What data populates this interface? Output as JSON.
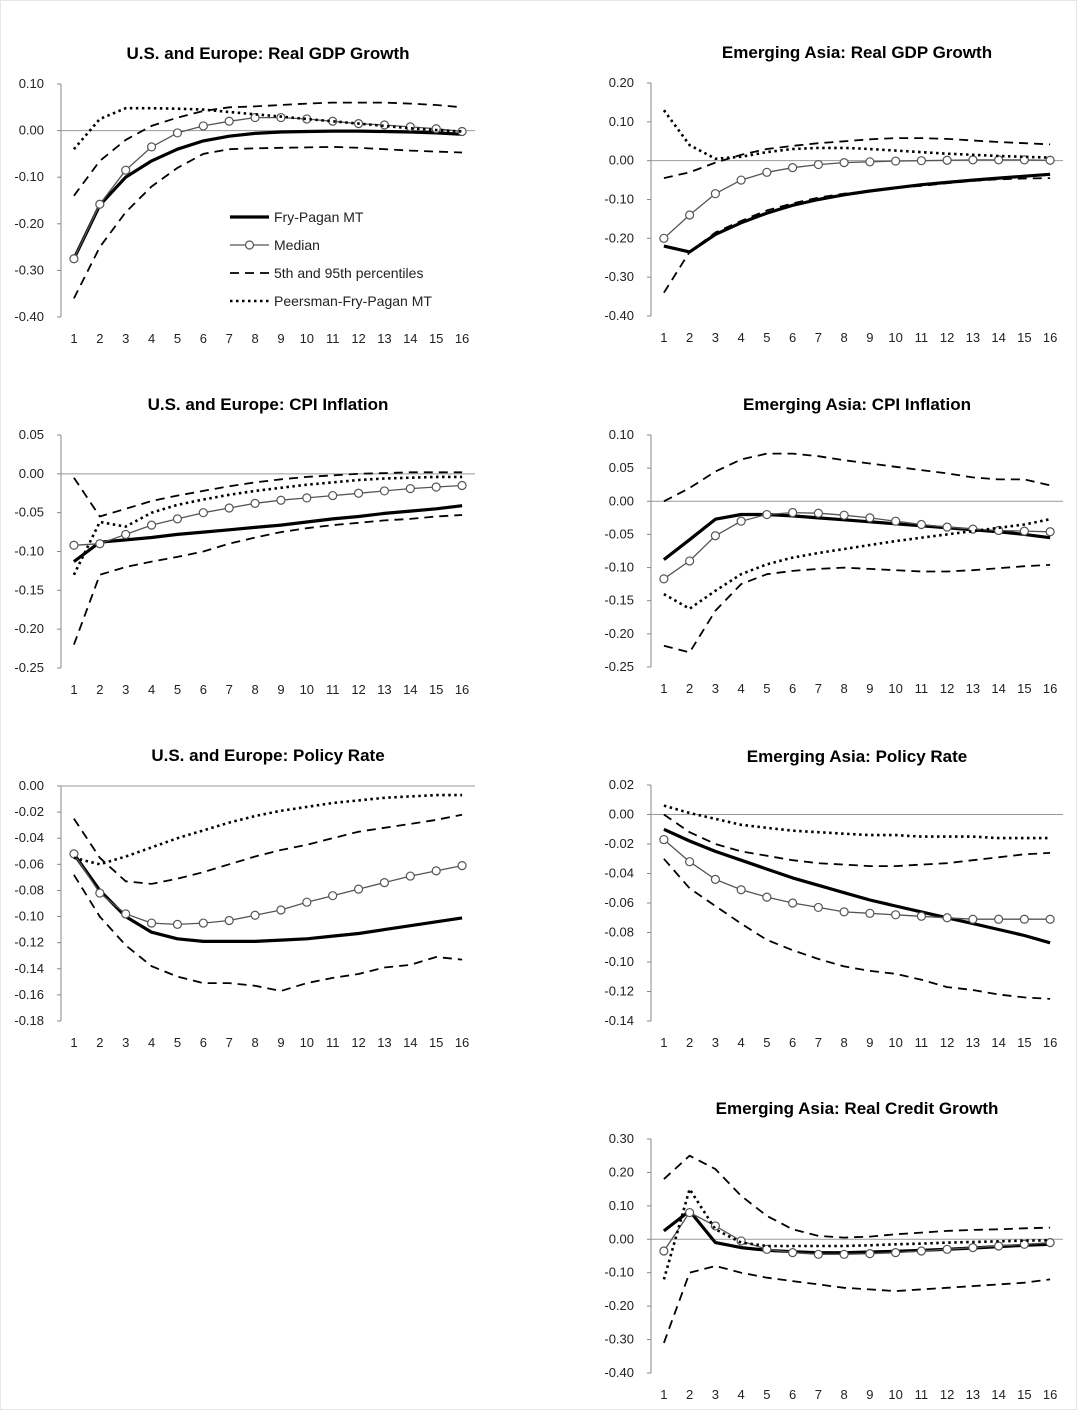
{
  "x_categories": [
    "1",
    "2",
    "3",
    "4",
    "5",
    "6",
    "7",
    "8",
    "9",
    "10",
    "11",
    "12",
    "13",
    "14",
    "15",
    "16"
  ],
  "legend": {
    "items": [
      {
        "key": "fry_pagan",
        "label": "Fry-Pagan MT"
      },
      {
        "key": "median",
        "label": "Median"
      },
      {
        "key": "pct",
        "label": "5th and 95th percentiles"
      },
      {
        "key": "peersman",
        "label": "Peersman-Fry-Pagan MT"
      }
    ]
  },
  "chart_data": [
    {
      "id": "us-gdp",
      "type": "line",
      "title": "U.S. and Europe: Real GDP Growth",
      "yticks": [
        "0.10",
        "0.00",
        "-0.10",
        "-0.20",
        "-0.30",
        "-0.40"
      ],
      "ylim": [
        -0.4,
        0.1
      ],
      "grid": false,
      "series": [
        {
          "key": "fry_pagan",
          "name": "Fry-Pagan MT",
          "values": [
            -0.275,
            -0.16,
            -0.1,
            -0.065,
            -0.04,
            -0.022,
            -0.012,
            -0.006,
            -0.003,
            -0.002,
            -0.001,
            -0.001,
            -0.002,
            -0.003,
            -0.005,
            -0.008
          ]
        },
        {
          "key": "median",
          "name": "Median",
          "values": [
            -0.275,
            -0.158,
            -0.085,
            -0.035,
            -0.005,
            0.01,
            0.02,
            0.028,
            0.028,
            0.025,
            0.02,
            0.015,
            0.012,
            0.008,
            0.004,
            -0.002
          ]
        },
        {
          "key": "p5",
          "name": "5th and 95th percentiles",
          "values": [
            -0.36,
            -0.25,
            -0.175,
            -0.12,
            -0.08,
            -0.05,
            -0.04,
            -0.038,
            -0.037,
            -0.036,
            -0.035,
            -0.037,
            -0.04,
            -0.043,
            -0.045,
            -0.047
          ]
        },
        {
          "key": "p95",
          "name": "5th and 95th percentiles",
          "values": [
            -0.14,
            -0.065,
            -0.02,
            0.01,
            0.028,
            0.042,
            0.05,
            0.052,
            0.055,
            0.058,
            0.06,
            0.06,
            0.06,
            0.058,
            0.055,
            0.05
          ]
        },
        {
          "key": "peersman",
          "name": "Peersman-Fry-Pagan MT",
          "values": [
            -0.04,
            0.025,
            0.048,
            0.048,
            0.047,
            0.045,
            0.04,
            0.035,
            0.03,
            0.025,
            0.02,
            0.015,
            0.01,
            0.005,
            0.001,
            -0.002
          ]
        }
      ]
    },
    {
      "id": "ea-gdp",
      "type": "line",
      "title": "Emerging Asia: Real GDP Growth",
      "yticks": [
        "0.20",
        "0.10",
        "0.00",
        "-0.10",
        "-0.20",
        "-0.30",
        "-0.40"
      ],
      "ylim": [
        -0.4,
        0.2
      ],
      "grid": false,
      "series": [
        {
          "key": "fry_pagan",
          "name": "Fry-Pagan MT",
          "values": [
            -0.22,
            -0.235,
            -0.19,
            -0.16,
            -0.135,
            -0.115,
            -0.1,
            -0.088,
            -0.078,
            -0.07,
            -0.062,
            -0.056,
            -0.05,
            -0.045,
            -0.04,
            -0.035
          ]
        },
        {
          "key": "median",
          "name": "Median",
          "values": [
            -0.2,
            -0.14,
            -0.085,
            -0.05,
            -0.03,
            -0.018,
            -0.01,
            -0.005,
            -0.003,
            -0.001,
            0.0,
            0.001,
            0.002,
            0.002,
            0.002,
            0.001
          ]
        },
        {
          "key": "p5",
          "name": "5th and 95th percentiles",
          "values": [
            -0.34,
            -0.235,
            -0.185,
            -0.155,
            -0.128,
            -0.11,
            -0.095,
            -0.085,
            -0.078,
            -0.07,
            -0.065,
            -0.058,
            -0.052,
            -0.048,
            -0.046,
            -0.045
          ]
        },
        {
          "key": "p95",
          "name": "5th and 95th percentiles",
          "values": [
            -0.045,
            -0.03,
            -0.005,
            0.015,
            0.03,
            0.038,
            0.045,
            0.05,
            0.055,
            0.058,
            0.058,
            0.056,
            0.052,
            0.048,
            0.045,
            0.042
          ]
        },
        {
          "key": "peersman",
          "name": "Peersman-Fry-Pagan MT",
          "values": [
            0.13,
            0.04,
            0.005,
            0.01,
            0.022,
            0.03,
            0.033,
            0.033,
            0.03,
            0.026,
            0.022,
            0.018,
            0.015,
            0.012,
            0.01,
            0.008
          ]
        }
      ]
    },
    {
      "id": "us-cpi",
      "type": "line",
      "title": "U.S. and Europe: CPI Inflation",
      "yticks": [
        "0.05",
        "0.00",
        "-0.05",
        "-0.10",
        "-0.15",
        "-0.20",
        "-0.25"
      ],
      "ylim": [
        -0.25,
        0.05
      ],
      "grid": false,
      "series": [
        {
          "key": "fry_pagan",
          "name": "Fry-Pagan MT",
          "values": [
            -0.113,
            -0.088,
            -0.085,
            -0.082,
            -0.078,
            -0.075,
            -0.072,
            -0.069,
            -0.066,
            -0.062,
            -0.058,
            -0.055,
            -0.051,
            -0.048,
            -0.045,
            -0.041
          ]
        },
        {
          "key": "median",
          "name": "Median",
          "values": [
            -0.092,
            -0.09,
            -0.078,
            -0.066,
            -0.058,
            -0.05,
            -0.044,
            -0.038,
            -0.034,
            -0.031,
            -0.028,
            -0.025,
            -0.022,
            -0.019,
            -0.017,
            -0.015
          ]
        },
        {
          "key": "p5",
          "name": "5th and 95th percentiles",
          "values": [
            -0.22,
            -0.13,
            -0.12,
            -0.113,
            -0.107,
            -0.1,
            -0.09,
            -0.082,
            -0.075,
            -0.07,
            -0.066,
            -0.063,
            -0.06,
            -0.058,
            -0.055,
            -0.053
          ]
        },
        {
          "key": "p95",
          "name": "5th and 95th percentiles",
          "values": [
            -0.005,
            -0.055,
            -0.045,
            -0.035,
            -0.028,
            -0.022,
            -0.016,
            -0.011,
            -0.007,
            -0.004,
            -0.002,
            0.0,
            0.001,
            0.002,
            0.002,
            0.002
          ]
        },
        {
          "key": "peersman",
          "name": "Peersman-Fry-Pagan MT",
          "values": [
            -0.13,
            -0.062,
            -0.068,
            -0.05,
            -0.04,
            -0.033,
            -0.027,
            -0.022,
            -0.018,
            -0.014,
            -0.011,
            -0.008,
            -0.006,
            -0.005,
            -0.004,
            -0.004
          ]
        }
      ]
    },
    {
      "id": "ea-cpi",
      "type": "line",
      "title": "Emerging Asia: CPI Inflation",
      "yticks": [
        "0.10",
        "0.05",
        "0.00",
        "-0.05",
        "-0.10",
        "-0.15",
        "-0.20",
        "-0.25"
      ],
      "ylim": [
        -0.25,
        0.1
      ],
      "grid": false,
      "series": [
        {
          "key": "fry_pagan",
          "name": "Fry-Pagan MT",
          "values": [
            -0.088,
            -0.058,
            -0.027,
            -0.02,
            -0.02,
            -0.022,
            -0.025,
            -0.028,
            -0.031,
            -0.034,
            -0.037,
            -0.04,
            -0.043,
            -0.046,
            -0.05,
            -0.055
          ]
        },
        {
          "key": "median",
          "name": "Median",
          "values": [
            -0.117,
            -0.09,
            -0.052,
            -0.03,
            -0.02,
            -0.017,
            -0.018,
            -0.021,
            -0.025,
            -0.03,
            -0.035,
            -0.039,
            -0.042,
            -0.044,
            -0.045,
            -0.046
          ]
        },
        {
          "key": "p5",
          "name": "5th and 95th percentiles",
          "values": [
            -0.218,
            -0.228,
            -0.165,
            -0.125,
            -0.11,
            -0.105,
            -0.102,
            -0.1,
            -0.102,
            -0.104,
            -0.106,
            -0.106,
            -0.104,
            -0.101,
            -0.098,
            -0.096
          ]
        },
        {
          "key": "p95",
          "name": "5th and 95th percentiles",
          "values": [
            0.0,
            0.02,
            0.045,
            0.063,
            0.072,
            0.072,
            0.068,
            0.062,
            0.057,
            0.052,
            0.047,
            0.042,
            0.036,
            0.033,
            0.033,
            0.024
          ]
        },
        {
          "key": "peersman",
          "name": "Peersman-Fry-Pagan MT",
          "values": [
            -0.14,
            -0.162,
            -0.135,
            -0.11,
            -0.095,
            -0.085,
            -0.078,
            -0.072,
            -0.066,
            -0.06,
            -0.055,
            -0.05,
            -0.045,
            -0.04,
            -0.035,
            -0.027
          ]
        }
      ]
    },
    {
      "id": "us-rate",
      "type": "line",
      "title": "U.S. and Europe: Policy Rate",
      "yticks": [
        "0.00",
        "-0.02",
        "-0.04",
        "-0.06",
        "-0.08",
        "-0.10",
        "-0.12",
        "-0.14",
        "-0.16",
        "-0.18"
      ],
      "ylim": [
        -0.18,
        0.0
      ],
      "grid": false,
      "series": [
        {
          "key": "fry_pagan",
          "name": "Fry-Pagan MT",
          "values": [
            -0.052,
            -0.08,
            -0.1,
            -0.112,
            -0.117,
            -0.119,
            -0.119,
            -0.119,
            -0.118,
            -0.117,
            -0.115,
            -0.113,
            -0.11,
            -0.107,
            -0.104,
            -0.101
          ]
        },
        {
          "key": "median",
          "name": "Median",
          "values": [
            -0.052,
            -0.082,
            -0.098,
            -0.105,
            -0.106,
            -0.105,
            -0.103,
            -0.099,
            -0.095,
            -0.089,
            -0.084,
            -0.079,
            -0.074,
            -0.069,
            -0.065,
            -0.061
          ]
        },
        {
          "key": "p5",
          "name": "5th and 95th percentiles",
          "values": [
            -0.068,
            -0.1,
            -0.122,
            -0.138,
            -0.146,
            -0.151,
            -0.151,
            -0.153,
            -0.157,
            -0.151,
            -0.147,
            -0.144,
            -0.139,
            -0.137,
            -0.131,
            -0.133
          ]
        },
        {
          "key": "p95",
          "name": "5th and 95th percentiles",
          "values": [
            -0.025,
            -0.055,
            -0.073,
            -0.075,
            -0.071,
            -0.066,
            -0.06,
            -0.054,
            -0.049,
            -0.045,
            -0.04,
            -0.035,
            -0.032,
            -0.029,
            -0.026,
            -0.022
          ]
        },
        {
          "key": "peersman",
          "name": "Peersman-Fry-Pagan MT",
          "values": [
            -0.055,
            -0.06,
            -0.054,
            -0.047,
            -0.04,
            -0.034,
            -0.028,
            -0.023,
            -0.019,
            -0.016,
            -0.013,
            -0.011,
            -0.009,
            -0.008,
            -0.007,
            -0.007
          ]
        }
      ]
    },
    {
      "id": "ea-rate",
      "type": "line",
      "title": "Emerging Asia: Policy Rate",
      "yticks": [
        "0.02",
        "0.00",
        "-0.02",
        "-0.04",
        "-0.06",
        "-0.08",
        "-0.10",
        "-0.12",
        "-0.14"
      ],
      "ylim": [
        -0.14,
        0.02
      ],
      "grid": false,
      "series": [
        {
          "key": "fry_pagan",
          "name": "Fry-Pagan MT",
          "values": [
            -0.01,
            -0.018,
            -0.025,
            -0.031,
            -0.037,
            -0.043,
            -0.048,
            -0.053,
            -0.058,
            -0.062,
            -0.066,
            -0.07,
            -0.074,
            -0.078,
            -0.082,
            -0.087
          ]
        },
        {
          "key": "median",
          "name": "Median",
          "values": [
            -0.017,
            -0.032,
            -0.044,
            -0.051,
            -0.056,
            -0.06,
            -0.063,
            -0.066,
            -0.067,
            -0.068,
            -0.069,
            -0.07,
            -0.071,
            -0.071,
            -0.071,
            -0.071
          ]
        },
        {
          "key": "p5",
          "name": "5th and 95th percentiles",
          "values": [
            -0.03,
            -0.05,
            -0.062,
            -0.074,
            -0.085,
            -0.092,
            -0.098,
            -0.103,
            -0.106,
            -0.108,
            -0.112,
            -0.117,
            -0.119,
            -0.122,
            -0.124,
            -0.125
          ]
        },
        {
          "key": "p95",
          "name": "5th and 95th percentiles",
          "values": [
            0.0,
            -0.012,
            -0.02,
            -0.025,
            -0.028,
            -0.031,
            -0.033,
            -0.034,
            -0.035,
            -0.035,
            -0.034,
            -0.033,
            -0.031,
            -0.029,
            -0.027,
            -0.026
          ]
        },
        {
          "key": "peersman",
          "name": "Peersman-Fry-Pagan MT",
          "values": [
            0.006,
            0.001,
            -0.003,
            -0.007,
            -0.009,
            -0.011,
            -0.012,
            -0.013,
            -0.014,
            -0.014,
            -0.015,
            -0.015,
            -0.015,
            -0.016,
            -0.016,
            -0.016
          ]
        }
      ]
    },
    {
      "id": "ea-credit",
      "type": "line",
      "title": "Emerging Asia: Real Credit Growth",
      "yticks": [
        "0.30",
        "0.20",
        "0.10",
        "0.00",
        "-0.10",
        "-0.20",
        "-0.30",
        "-0.40"
      ],
      "ylim": [
        -0.4,
        0.3
      ],
      "grid": false,
      "series": [
        {
          "key": "fry_pagan",
          "name": "Fry-Pagan MT",
          "values": [
            0.025,
            0.085,
            -0.01,
            -0.025,
            -0.033,
            -0.037,
            -0.04,
            -0.04,
            -0.038,
            -0.036,
            -0.033,
            -0.03,
            -0.026,
            -0.022,
            -0.018,
            -0.015
          ]
        },
        {
          "key": "median",
          "name": "Median",
          "values": [
            -0.035,
            0.08,
            0.04,
            -0.005,
            -0.03,
            -0.04,
            -0.045,
            -0.045,
            -0.043,
            -0.04,
            -0.035,
            -0.03,
            -0.025,
            -0.02,
            -0.015,
            -0.01
          ]
        },
        {
          "key": "p5",
          "name": "5th and 95th percentiles",
          "values": [
            -0.31,
            -0.1,
            -0.08,
            -0.1,
            -0.115,
            -0.125,
            -0.135,
            -0.145,
            -0.15,
            -0.155,
            -0.15,
            -0.145,
            -0.14,
            -0.135,
            -0.13,
            -0.12
          ]
        },
        {
          "key": "p95",
          "name": "5th and 95th percentiles",
          "values": [
            0.18,
            0.25,
            0.21,
            0.13,
            0.07,
            0.03,
            0.01,
            0.005,
            0.008,
            0.015,
            0.02,
            0.025,
            0.028,
            0.03,
            0.033,
            0.035
          ]
        },
        {
          "key": "peersman",
          "name": "Peersman-Fry-Pagan MT",
          "values": [
            -0.12,
            0.15,
            0.03,
            -0.01,
            -0.02,
            -0.02,
            -0.02,
            -0.02,
            -0.018,
            -0.015,
            -0.013,
            -0.01,
            -0.008,
            -0.006,
            -0.004,
            -0.003
          ]
        }
      ]
    }
  ]
}
